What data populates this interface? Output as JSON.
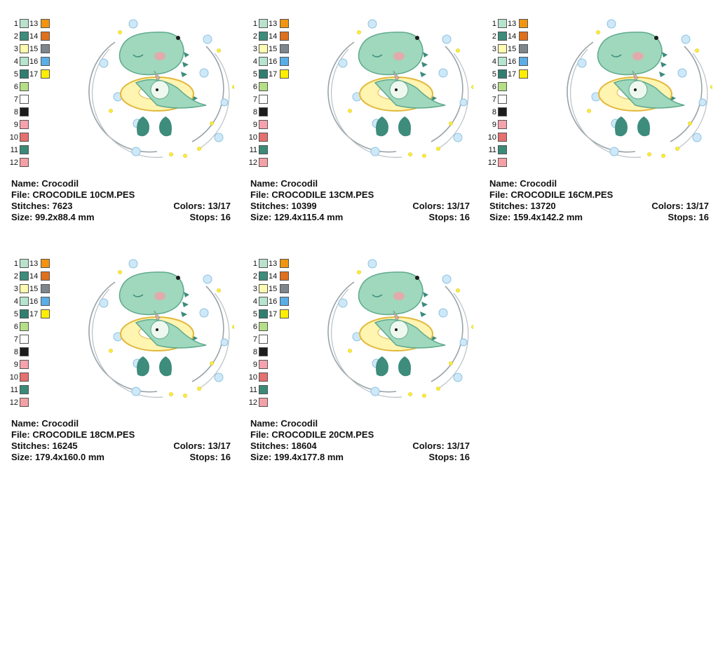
{
  "palette": {
    "left_colors": [
      {
        "n": "1",
        "color": "#b9e2cc"
      },
      {
        "n": "2",
        "color": "#3d8c7c"
      },
      {
        "n": "3",
        "color": "#fffab0"
      },
      {
        "n": "4",
        "color": "#b7e4cf"
      },
      {
        "n": "5",
        "color": "#2f7f70"
      },
      {
        "n": "6",
        "color": "#b5df86"
      },
      {
        "n": "7",
        "color": "#ffffff"
      },
      {
        "n": "8",
        "color": "#1c1c1c"
      },
      {
        "n": "9",
        "color": "#f4a3ad"
      },
      {
        "n": "10",
        "color": "#e57070"
      },
      {
        "n": "11",
        "color": "#3a8a78"
      },
      {
        "n": "12",
        "color": "#f3a0a6"
      }
    ],
    "right_colors": [
      {
        "n": "13",
        "color": "#f2940f"
      },
      {
        "n": "14",
        "color": "#e0701c"
      },
      {
        "n": "15",
        "color": "#7d868c"
      },
      {
        "n": "16",
        "color": "#5aaee8"
      },
      {
        "n": "17",
        "color": "#ffee00"
      }
    ]
  },
  "labels": {
    "name": "Name:",
    "file": "File:",
    "stitches": "Stitches:",
    "colors": "Colors:",
    "size": "Size:",
    "stops": "Stops:"
  },
  "designs": [
    {
      "name": "Crocodil",
      "file": "CROCODILE 10CM.PES",
      "stitches": "7623",
      "colors": "13/17",
      "size": "99.2x88.4 mm",
      "stops": "16"
    },
    {
      "name": "Crocodil",
      "file": "CROCODILE 13CM.PES",
      "stitches": "10399",
      "colors": "13/17",
      "size": "129.4x115.4 mm",
      "stops": "16"
    },
    {
      "name": "Crocodil",
      "file": "CROCODILE 16CM.PES",
      "stitches": "13720",
      "colors": "13/17",
      "size": "159.4x142.2 mm",
      "stops": "16"
    },
    {
      "name": "Crocodil",
      "file": "CROCODILE 18CM.PES",
      "stitches": "16245",
      "colors": "13/17",
      "size": "179.4x160.0 mm",
      "stops": "16"
    },
    {
      "name": "Crocodil",
      "file": "CROCODILE 20CM.PES",
      "stitches": "18604",
      "colors": "13/17",
      "size": "199.4x177.8 mm",
      "stops": "16"
    }
  ]
}
